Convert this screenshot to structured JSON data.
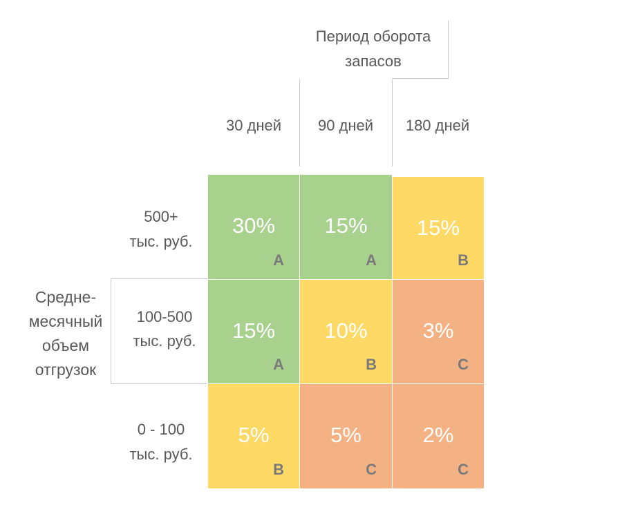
{
  "header": {
    "period_line1": "Период оборота",
    "period_line2": "запасов",
    "columns": [
      "30 дней",
      "90 дней",
      "180 дней"
    ]
  },
  "side": {
    "volume_lines": [
      "Средне-",
      "месячный",
      "объем",
      "отгрузок"
    ],
    "rows": [
      {
        "line1": "500+",
        "line2": "тыс. руб."
      },
      {
        "line1": "100-500",
        "line2": "тыс. руб."
      },
      {
        "line1": "0 - 100",
        "line2": "тыс. руб."
      }
    ]
  },
  "colors": {
    "green": "#A9D18E",
    "yellow": "#FFD966",
    "orange": "#F4B183",
    "divider": "#C9C9C9"
  },
  "matrix": [
    [
      {
        "percent": "30%",
        "class": "A",
        "color": "green"
      },
      {
        "percent": "15%",
        "class": "A",
        "color": "green"
      },
      {
        "percent": "15%",
        "class": "B",
        "color": "yellow"
      }
    ],
    [
      {
        "percent": "15%",
        "class": "A",
        "color": "green"
      },
      {
        "percent": "10%",
        "class": "B",
        "color": "yellow"
      },
      {
        "percent": "3%",
        "class": "C",
        "color": "orange"
      }
    ],
    [
      {
        "percent": "5%",
        "class": "B",
        "color": "yellow"
      },
      {
        "percent": "5%",
        "class": "C",
        "color": "orange"
      },
      {
        "percent": "2%",
        "class": "C",
        "color": "orange"
      }
    ]
  ]
}
